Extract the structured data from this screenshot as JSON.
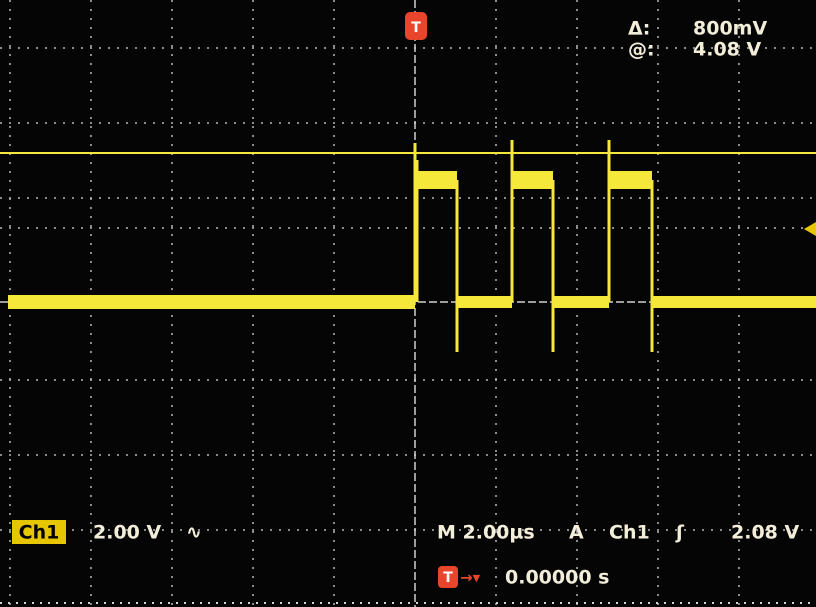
{
  "readout": {
    "delta_label": "Δ:",
    "delta_value": "800mV",
    "at_label": "@:",
    "at_value": "4.08 V"
  },
  "trigger_marker": "T",
  "channel": {
    "name": "Ch1",
    "scale": "2.00 V",
    "coupling": "∿"
  },
  "timebase": {
    "scale": "M 2.00µs",
    "mode": "A",
    "source": "Ch1",
    "slope": "ʃ",
    "level": "2.08 V"
  },
  "trigger_position": {
    "marker": "T",
    "arrow": "→▾",
    "time": "0.00000 s"
  }
}
